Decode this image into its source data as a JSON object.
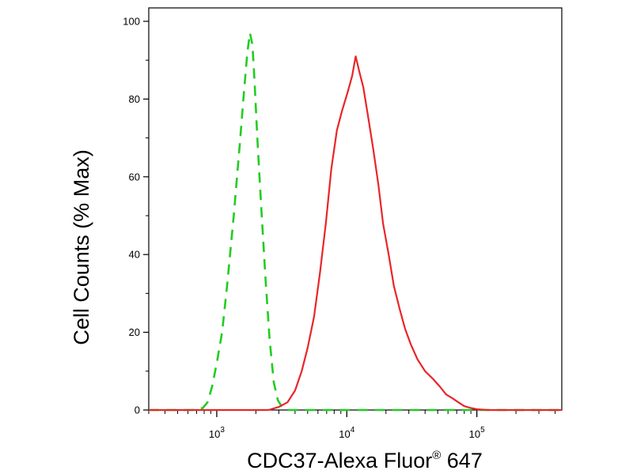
{
  "chart_data": {
    "type": "line",
    "xlabel": "CDC37-Alexa Fluor",
    "xlabel_superscript": "®",
    "xlabel_suffix": " 647",
    "ylabel": "Cell Counts (% Max)",
    "x_scale": "log",
    "xlim": [
      300,
      450000
    ],
    "ylim": [
      0,
      100
    ],
    "x_ticks": [
      {
        "base": "10",
        "exp": "3",
        "value": 1000
      },
      {
        "base": "10",
        "exp": "4",
        "value": 10000
      },
      {
        "base": "10",
        "exp": "5",
        "value": 100000
      }
    ],
    "y_ticks": [
      {
        "label": "0",
        "value": 0
      },
      {
        "label": "20",
        "value": 20
      },
      {
        "label": "40",
        "value": 40
      },
      {
        "label": "60",
        "value": 60
      },
      {
        "label": "80",
        "value": 80
      },
      {
        "label": "100",
        "value": 100
      }
    ],
    "grid": false,
    "series": [
      {
        "color": "#22cc22",
        "style": "dashed",
        "x": [
          300,
          500,
          650,
          780,
          850,
          920,
          1000,
          1100,
          1200,
          1350,
          1500,
          1620,
          1720,
          1800,
          1880,
          1950,
          2050,
          2200,
          2380,
          2550,
          2750,
          2950,
          3150,
          3400,
          4000,
          10000,
          100000,
          450000
        ],
        "y": [
          0,
          0,
          0,
          0.5,
          2,
          6,
          12,
          20,
          32,
          50,
          68,
          82,
          92,
          97,
          94,
          85,
          70,
          52,
          33,
          18,
          7,
          2.5,
          1,
          0,
          0,
          0,
          0,
          0
        ]
      },
      {
        "color": "#e8262a",
        "style": "solid",
        "x": [
          300,
          2500,
          3000,
          3500,
          4000,
          4500,
          5000,
          5600,
          6200,
          6900,
          7600,
          8400,
          9200,
          10200,
          11000,
          11700,
          12500,
          13400,
          14500,
          16000,
          17500,
          19000,
          21000,
          23000,
          25500,
          28000,
          31000,
          35000,
          40000,
          46000,
          52000,
          58000,
          65000,
          72000,
          80000,
          90000,
          100000,
          120000,
          200000,
          450000
        ],
        "y": [
          0,
          0,
          0.8,
          2,
          5,
          10,
          16,
          24,
          35,
          48,
          62,
          72,
          77,
          82,
          86,
          91,
          87,
          83,
          76,
          67,
          58,
          48,
          40,
          32,
          26,
          21,
          17,
          13,
          10,
          8,
          6,
          4,
          3,
          2,
          1,
          0.5,
          0.2,
          0,
          0,
          0
        ]
      }
    ]
  }
}
